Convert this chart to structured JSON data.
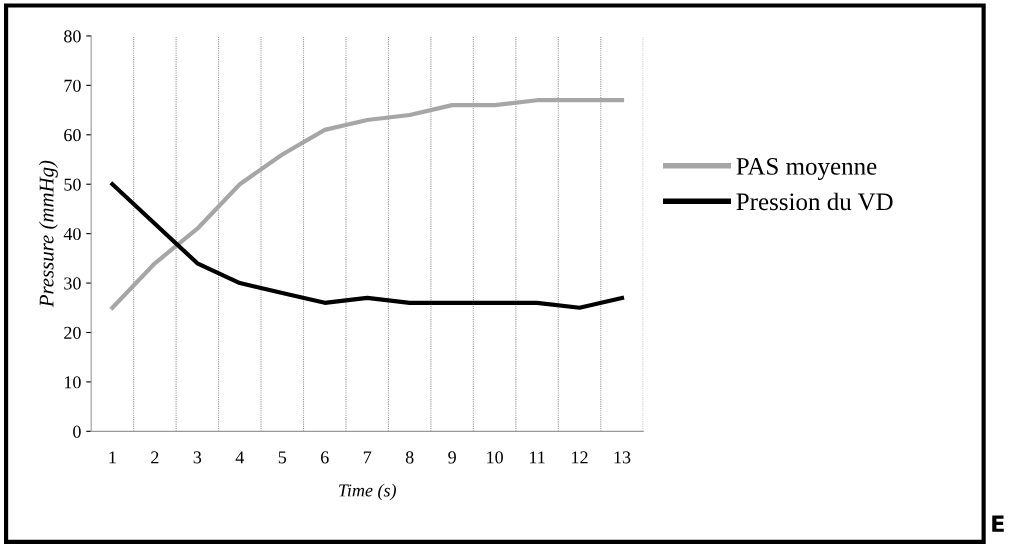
{
  "chart_data": {
    "type": "line",
    "xlabel": "Time (s)",
    "ylabel": "Pressure (mmHg)",
    "categories": [
      "1",
      "2",
      "3",
      "4",
      "5",
      "6",
      "7",
      "8",
      "9",
      "10",
      "11",
      "12",
      "13"
    ],
    "series": [
      {
        "name": "PAS moyenne",
        "color": "#a6a6a6",
        "values": [
          25,
          34,
          41,
          50,
          56,
          61,
          63,
          64,
          66,
          66,
          67,
          67,
          67
        ]
      },
      {
        "name": "Pression du VD",
        "color": "#000000",
        "values": [
          50,
          42,
          34,
          30,
          28,
          26,
          27,
          26,
          26,
          26,
          26,
          25,
          27
        ]
      }
    ],
    "ylim": [
      0,
      80
    ],
    "yticks": [
      0,
      10,
      20,
      30,
      40,
      50,
      60,
      70,
      80
    ],
    "grid": "x",
    "legend": "right",
    "marker": "none",
    "line_style": "solid",
    "annotations": [
      "E"
    ]
  }
}
